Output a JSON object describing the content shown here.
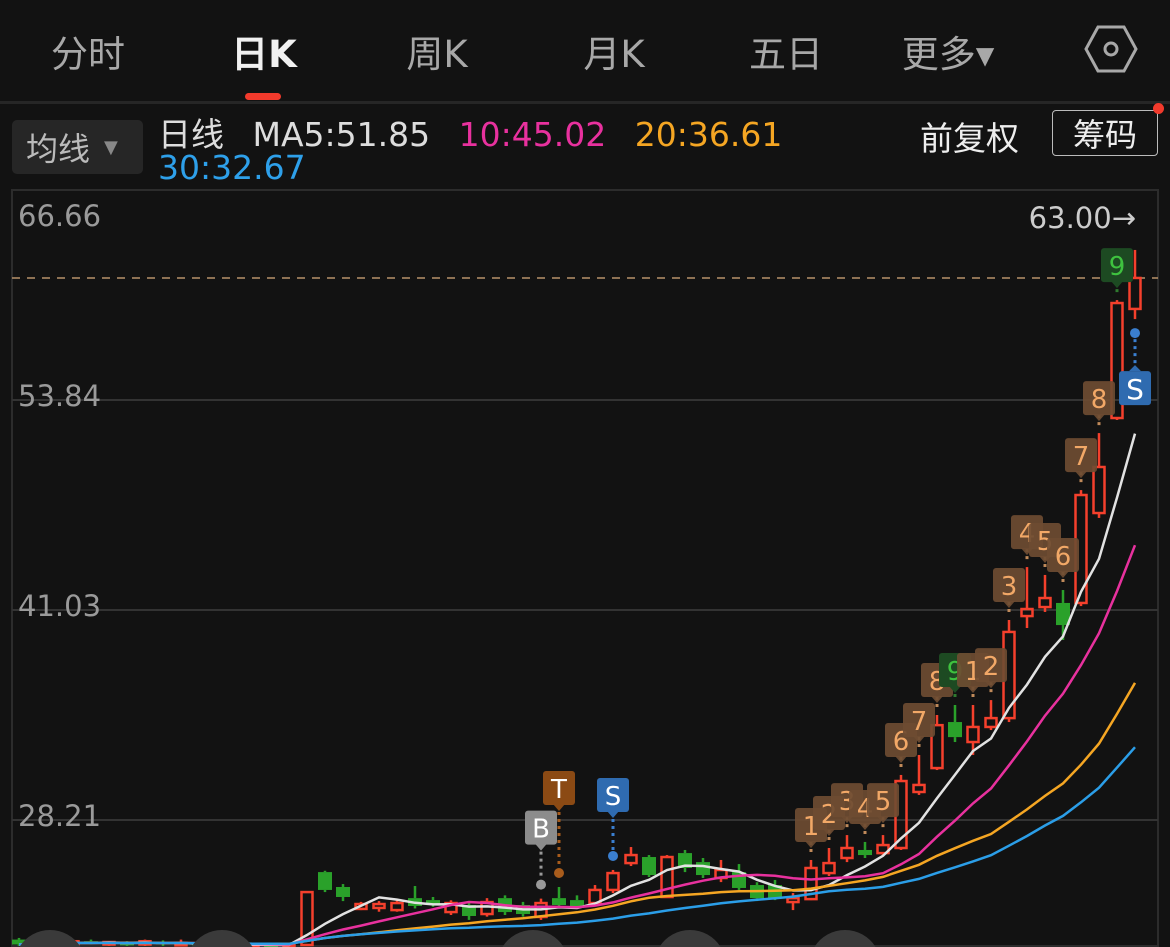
{
  "tabs": [
    {
      "label": "分时",
      "active": false
    },
    {
      "label": "日K",
      "active": true
    },
    {
      "label": "周K",
      "active": false
    },
    {
      "label": "月K",
      "active": false
    },
    {
      "label": "五日",
      "active": false
    },
    {
      "label": "更多▾",
      "active": false
    }
  ],
  "settings_icon": "hexagon-settings-icon",
  "indicator_select": {
    "label": "均线",
    "icon": "triangle-down-icon"
  },
  "ma_info": {
    "period_label": "日线",
    "ma5": "MA5:51.85",
    "ma10": "10:45.02",
    "ma20": "20:36.61",
    "ma30": "30:32.67"
  },
  "adjust_label": "前复权",
  "chips_label": "筹码",
  "colors": {
    "up": "#f5402c",
    "down": "#2aa12a",
    "ma5": "#e2e2e2",
    "ma10": "#e8319e",
    "ma20": "#f5a623",
    "ma30": "#2b9ee8",
    "accent": "#f23a2c"
  },
  "chart_data": {
    "type": "candlestick",
    "y_ticks": [
      "66.66",
      "53.84",
      "41.03",
      "28.21"
    ],
    "ylim": [
      19.5,
      66.66
    ],
    "high_marker": "63.00→",
    "ohlc": [
      [
        20.9,
        21.0,
        20.5,
        20.6
      ],
      [
        20.6,
        20.8,
        20.5,
        20.7
      ],
      [
        20.8,
        21.0,
        20.6,
        20.7
      ],
      [
        20.6,
        20.9,
        20.5,
        20.8
      ],
      [
        20.8,
        20.9,
        20.6,
        20.65
      ],
      [
        20.6,
        20.8,
        20.5,
        20.75
      ],
      [
        20.7,
        20.8,
        20.5,
        20.6
      ],
      [
        20.6,
        20.9,
        20.5,
        20.8
      ],
      [
        20.75,
        20.85,
        20.5,
        20.6
      ],
      [
        20.6,
        20.9,
        20.5,
        20.7
      ],
      [
        20.7,
        20.9,
        20.5,
        20.55
      ],
      [
        20.55,
        20.7,
        20.4,
        20.6
      ],
      [
        20.6,
        20.7,
        20.4,
        20.5
      ],
      [
        20.5,
        20.6,
        20.4,
        20.55
      ],
      [
        20.55,
        20.6,
        20.4,
        20.5
      ],
      [
        20.5,
        20.6,
        20.4,
        20.55
      ],
      [
        20.57,
        23.85,
        20.45,
        23.8
      ],
      [
        25.02,
        25.1,
        23.8,
        23.93
      ],
      [
        24.11,
        24.29,
        23.25,
        23.5
      ],
      [
        22.77,
        23.2,
        22.7,
        23.07
      ],
      [
        22.83,
        23.25,
        22.6,
        23.07
      ],
      [
        22.7,
        23.3,
        22.6,
        23.13
      ],
      [
        23.43,
        24.17,
        22.8,
        22.95
      ],
      [
        23.31,
        23.5,
        22.9,
        23.01
      ],
      [
        22.58,
        23.3,
        22.4,
        23.13
      ],
      [
        23.01,
        23.2,
        22.1,
        22.34
      ],
      [
        22.46,
        23.43,
        22.3,
        23.19
      ],
      [
        23.43,
        23.6,
        22.4,
        22.58
      ],
      [
        23.01,
        23.2,
        22.3,
        22.46
      ],
      [
        22.28,
        23.4,
        22.1,
        23.13
      ],
      [
        23.43,
        24.11,
        22.9,
        23.01
      ],
      [
        23.31,
        23.6,
        22.8,
        22.95
      ],
      [
        23.13,
        24.23,
        23.01,
        23.93
      ],
      [
        23.93,
        25.15,
        23.74,
        24.96
      ],
      [
        25.57,
        26.55,
        25.39,
        26.06
      ],
      [
        25.94,
        26.06,
        24.72,
        24.84
      ],
      [
        23.5,
        26.06,
        23.44,
        25.94
      ],
      [
        26.18,
        26.37,
        25.02,
        25.27
      ],
      [
        25.63,
        25.88,
        24.66,
        24.84
      ],
      [
        24.66,
        25.76,
        24.41,
        25.15
      ],
      [
        25.02,
        25.51,
        23.93,
        24.05
      ],
      [
        24.23,
        24.4,
        23.25,
        23.43
      ],
      [
        24.23,
        24.54,
        23.31,
        23.43
      ],
      [
        23.19,
        23.74,
        22.7,
        23.43
      ],
      [
        23.37,
        25.76,
        23.31,
        25.27
      ],
      [
        24.96,
        26.49,
        24.78,
        25.57
      ],
      [
        25.88,
        27.28,
        25.63,
        26.49
      ],
      [
        26.37,
        26.86,
        25.88,
        26.06
      ],
      [
        26.18,
        27.28,
        26.0,
        26.67
      ],
      [
        26.49,
        30.95,
        26.37,
        30.58
      ],
      [
        29.91,
        32.17,
        29.73,
        30.34
      ],
      [
        31.37,
        34.61,
        31.25,
        33.99
      ],
      [
        34.18,
        35.22,
        32.96,
        33.26
      ],
      [
        32.96,
        35.22,
        32.17,
        33.88
      ],
      [
        33.88,
        35.52,
        33.69,
        34.42
      ],
      [
        34.42,
        40.41,
        34.18,
        39.68
      ],
      [
        40.65,
        43.64,
        39.92,
        41.08
      ],
      [
        41.2,
        43.16,
        40.9,
        41.75
      ],
      [
        41.45,
        42.24,
        39.19,
        40.1
      ],
      [
        41.45,
        48.34,
        41.26,
        48.04
      ],
      [
        46.94,
        51.82,
        46.64,
        49.75
      ],
      [
        52.74,
        59.94,
        52.62,
        59.76
      ],
      [
        59.4,
        63.0,
        58.78,
        61.29
      ]
    ],
    "moving_averages": [
      5,
      10,
      20,
      30
    ],
    "signals": [
      {
        "i": 29,
        "text": "B",
        "kind": "buy"
      },
      {
        "i": 30,
        "text": "T",
        "kind": "t"
      },
      {
        "i": 33,
        "text": "S",
        "kind": "sell"
      },
      {
        "i": 44,
        "text": "1",
        "kind": "num"
      },
      {
        "i": 45,
        "text": "2",
        "kind": "num"
      },
      {
        "i": 46,
        "text": "3",
        "kind": "num"
      },
      {
        "i": 47,
        "text": "4",
        "kind": "num"
      },
      {
        "i": 48,
        "text": "5",
        "kind": "num"
      },
      {
        "i": 49,
        "text": "6",
        "kind": "num"
      },
      {
        "i": 50,
        "text": "7",
        "kind": "num"
      },
      {
        "i": 51,
        "text": "8",
        "kind": "num"
      },
      {
        "i": 52,
        "text": "9",
        "kind": "num9"
      },
      {
        "i": 53,
        "text": "1",
        "kind": "num"
      },
      {
        "i": 54,
        "text": "2",
        "kind": "num"
      },
      {
        "i": 55,
        "text": "3",
        "kind": "num"
      },
      {
        "i": 56,
        "text": "4",
        "kind": "num"
      },
      {
        "i": 57,
        "text": "5",
        "kind": "num"
      },
      {
        "i": 58,
        "text": "6",
        "kind": "num"
      },
      {
        "i": 59,
        "text": "7",
        "kind": "num"
      },
      {
        "i": 60,
        "text": "8",
        "kind": "num"
      },
      {
        "i": 61,
        "text": "9",
        "kind": "num9"
      },
      {
        "i": 62,
        "text": "S",
        "kind": "sell-below"
      }
    ]
  }
}
